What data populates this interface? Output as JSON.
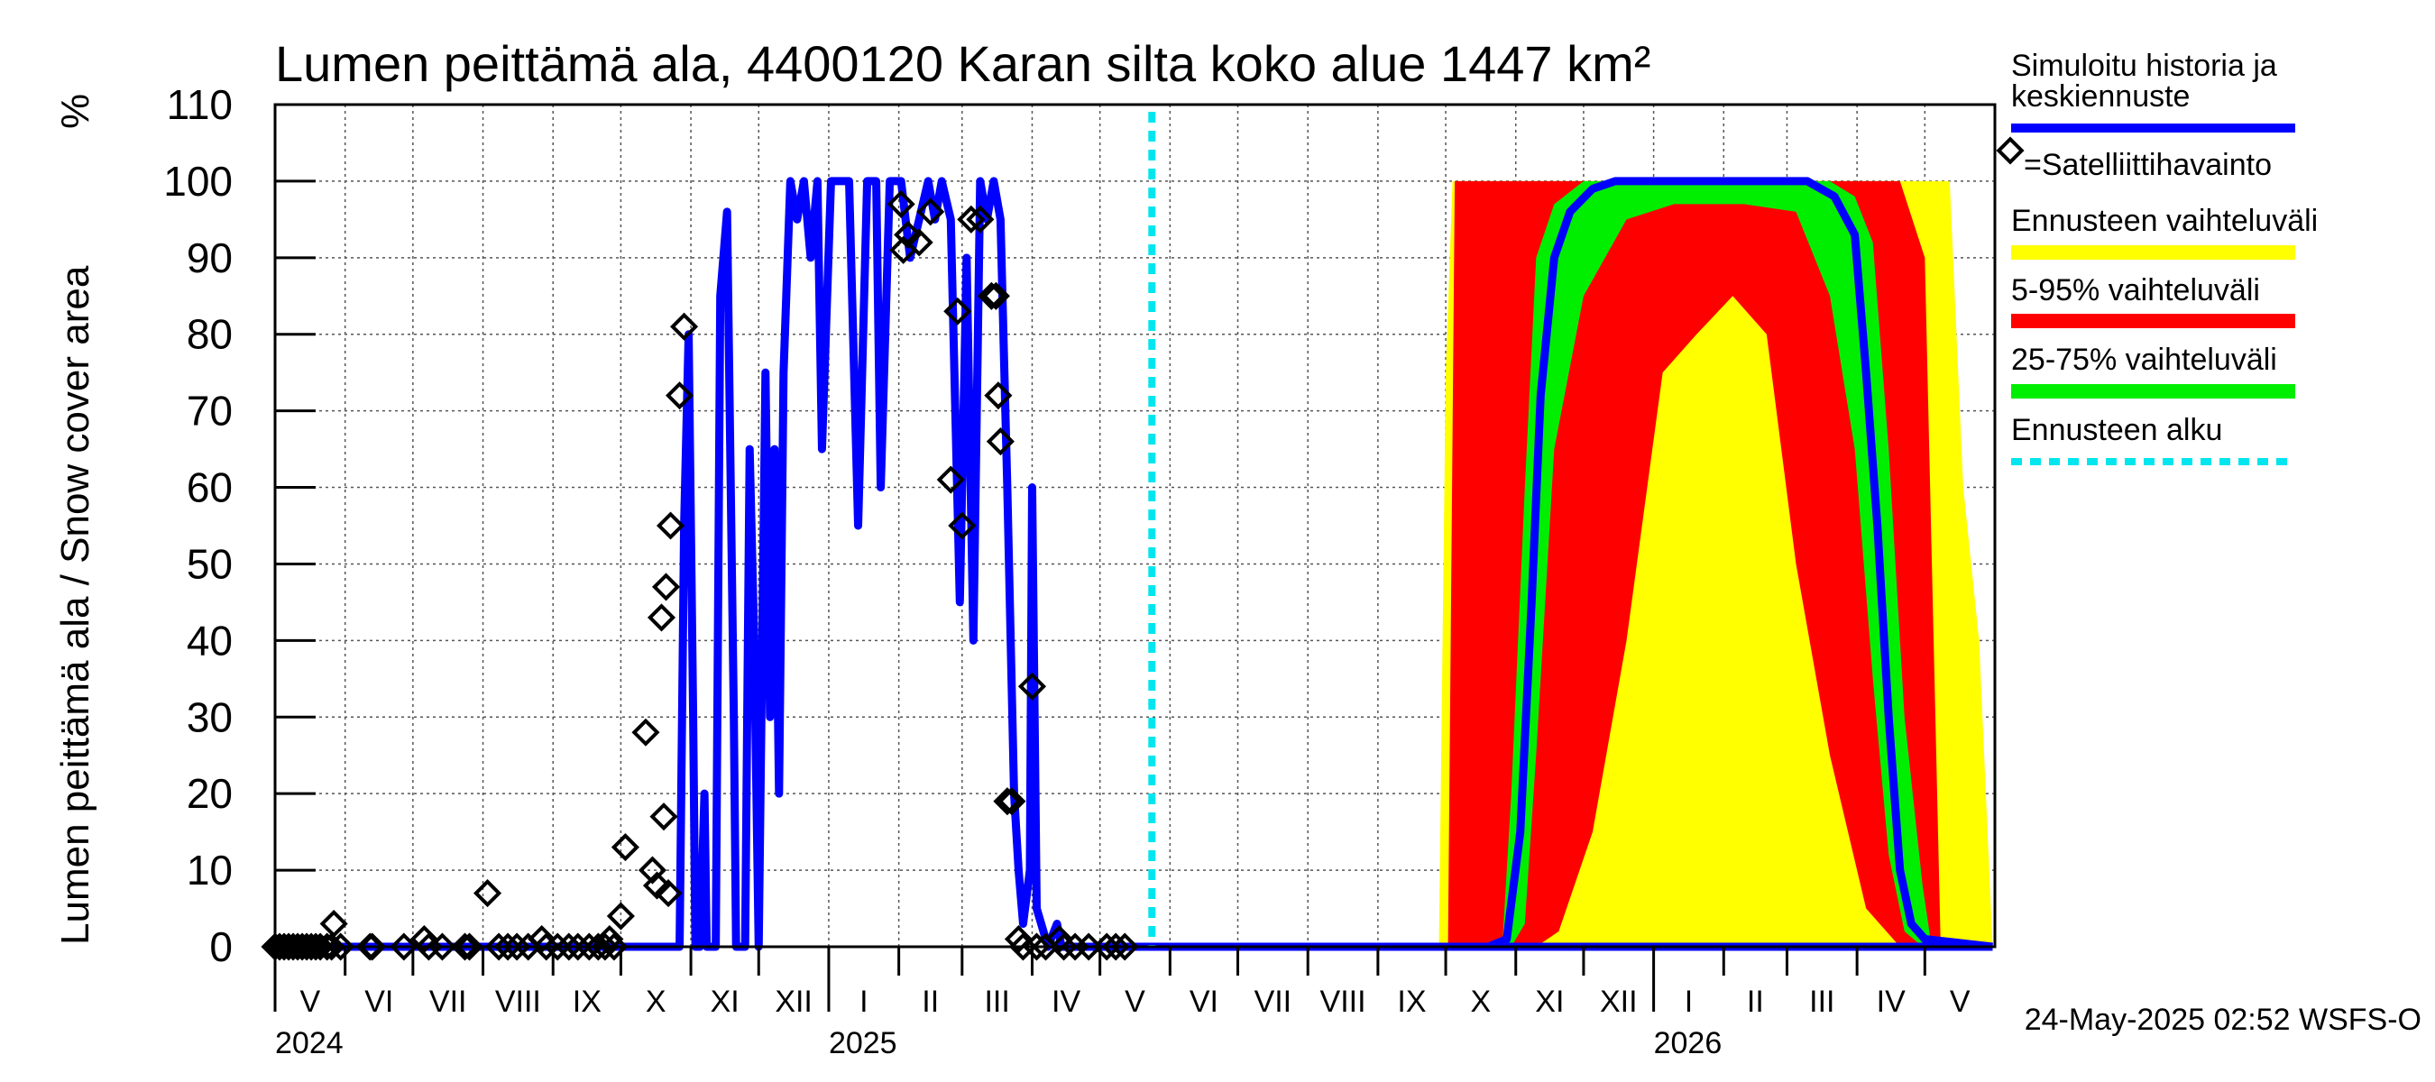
{
  "chart_data": {
    "type": "area",
    "title": "Lumen peittämä ala, 4400120 Karan silta koko alue 1447 km²",
    "ylabel": "Lumen peittämä ala / Snow cover area",
    "yunit": "%",
    "ylim": [
      0,
      110
    ],
    "yticks": [
      "0",
      "10",
      "20",
      "30",
      "40",
      "50",
      "60",
      "70",
      "80",
      "90",
      "100",
      "110"
    ],
    "xlim": [
      "2024-05-01",
      "2026-06-01"
    ],
    "grid": true,
    "months": [
      {
        "label": "V",
        "start": "2024-05-01"
      },
      {
        "label": "VI",
        "start": "2024-06-01"
      },
      {
        "label": "VII",
        "start": "2024-07-01"
      },
      {
        "label": "VIII",
        "start": "2024-08-01"
      },
      {
        "label": "IX",
        "start": "2024-09-01"
      },
      {
        "label": "X",
        "start": "2024-10-01"
      },
      {
        "label": "XI",
        "start": "2024-11-01"
      },
      {
        "label": "XII",
        "start": "2024-12-01"
      },
      {
        "label": "I",
        "start": "2025-01-01"
      },
      {
        "label": "II",
        "start": "2025-02-01"
      },
      {
        "label": "III",
        "start": "2025-03-01"
      },
      {
        "label": "IV",
        "start": "2025-04-01"
      },
      {
        "label": "V",
        "start": "2025-05-01"
      },
      {
        "label": "VI",
        "start": "2025-06-01"
      },
      {
        "label": "VII",
        "start": "2025-07-01"
      },
      {
        "label": "VIII",
        "start": "2025-08-01"
      },
      {
        "label": "IX",
        "start": "2025-09-01"
      },
      {
        "label": "X",
        "start": "2025-10-01"
      },
      {
        "label": "XI",
        "start": "2025-11-01"
      },
      {
        "label": "XII",
        "start": "2025-12-01"
      },
      {
        "label": "I",
        "start": "2026-01-01"
      },
      {
        "label": "II",
        "start": "2026-02-01"
      },
      {
        "label": "III",
        "start": "2026-03-01"
      },
      {
        "label": "IV",
        "start": "2026-04-01"
      },
      {
        "label": "V",
        "start": "2026-05-01"
      }
    ],
    "years": [
      {
        "label": "2024",
        "date": "2024-05-01"
      },
      {
        "label": "2025",
        "date": "2025-01-01"
      },
      {
        "label": "2026",
        "date": "2026-01-01"
      }
    ],
    "forecast_start": "2025-05-24",
    "simulated_history": [
      [
        "2024-05-01",
        0
      ],
      [
        "2024-10-27",
        0
      ],
      [
        "2024-10-29",
        55
      ],
      [
        "2024-10-31",
        80
      ],
      [
        "2024-11-02",
        30
      ],
      [
        "2024-11-03",
        0
      ],
      [
        "2024-11-05",
        0
      ],
      [
        "2024-11-07",
        20
      ],
      [
        "2024-11-08",
        0
      ],
      [
        "2024-11-12",
        0
      ],
      [
        "2024-11-14",
        85
      ],
      [
        "2024-11-17",
        96
      ],
      [
        "2024-11-20",
        30
      ],
      [
        "2024-11-21",
        0
      ],
      [
        "2024-11-25",
        0
      ],
      [
        "2024-11-27",
        65
      ],
      [
        "2024-11-29",
        40
      ],
      [
        "2024-12-01",
        0
      ],
      [
        "2024-12-04",
        75
      ],
      [
        "2024-12-06",
        30
      ],
      [
        "2024-12-08",
        65
      ],
      [
        "2024-12-10",
        20
      ],
      [
        "2024-12-12",
        75
      ],
      [
        "2024-12-15",
        100
      ],
      [
        "2024-12-18",
        95
      ],
      [
        "2024-12-21",
        100
      ],
      [
        "2024-12-24",
        90
      ],
      [
        "2024-12-27",
        100
      ],
      [
        "2024-12-29",
        65
      ],
      [
        "2025-01-02",
        100
      ],
      [
        "2025-01-06",
        100
      ],
      [
        "2025-01-10",
        100
      ],
      [
        "2025-01-14",
        55
      ],
      [
        "2025-01-18",
        100
      ],
      [
        "2025-01-22",
        100
      ],
      [
        "2025-01-24",
        60
      ],
      [
        "2025-01-28",
        100
      ],
      [
        "2025-02-02",
        100
      ],
      [
        "2025-02-06",
        90
      ],
      [
        "2025-02-10",
        95
      ],
      [
        "2025-02-14",
        100
      ],
      [
        "2025-02-17",
        95
      ],
      [
        "2025-02-20",
        100
      ],
      [
        "2025-02-24",
        95
      ],
      [
        "2025-02-28",
        45
      ],
      [
        "2025-03-03",
        90
      ],
      [
        "2025-03-06",
        40
      ],
      [
        "2025-03-09",
        100
      ],
      [
        "2025-03-12",
        95
      ],
      [
        "2025-03-15",
        100
      ],
      [
        "2025-03-18",
        95
      ],
      [
        "2025-03-21",
        60
      ],
      [
        "2025-03-24",
        20
      ],
      [
        "2025-03-26",
        10
      ],
      [
        "2025-03-28",
        3
      ],
      [
        "2025-03-31",
        10
      ],
      [
        "2025-04-01",
        60
      ],
      [
        "2025-04-03",
        5
      ],
      [
        "2025-04-08",
        0
      ],
      [
        "2025-04-12",
        3
      ],
      [
        "2025-04-14",
        0
      ],
      [
        "2026-05-31",
        0
      ]
    ],
    "median_forecast": [
      [
        "2025-05-24",
        0
      ],
      [
        "2025-10-20",
        0
      ],
      [
        "2025-10-28",
        1
      ],
      [
        "2025-11-03",
        15
      ],
      [
        "2025-11-08",
        45
      ],
      [
        "2025-11-12",
        72
      ],
      [
        "2025-11-18",
        90
      ],
      [
        "2025-11-25",
        96
      ],
      [
        "2025-12-05",
        99
      ],
      [
        "2025-12-15",
        100
      ],
      [
        "2026-01-15",
        100
      ],
      [
        "2026-02-15",
        100
      ],
      [
        "2026-03-10",
        100
      ],
      [
        "2026-03-22",
        98
      ],
      [
        "2026-03-31",
        93
      ],
      [
        "2026-04-05",
        75
      ],
      [
        "2026-04-10",
        55
      ],
      [
        "2026-04-15",
        30
      ],
      [
        "2026-04-20",
        10
      ],
      [
        "2026-04-25",
        3
      ],
      [
        "2026-05-01",
        1
      ],
      [
        "2026-05-31",
        0
      ]
    ],
    "band_5_95": [
      [
        "2025-10-02",
        0,
        0
      ],
      [
        "2025-10-05",
        0,
        100
      ],
      [
        "2025-10-20",
        0,
        100
      ],
      [
        "2025-11-01",
        0,
        100
      ],
      [
        "2025-11-10",
        0,
        100
      ],
      [
        "2025-11-20",
        2,
        100
      ],
      [
        "2025-12-05",
        15,
        100
      ],
      [
        "2025-12-20",
        40,
        100
      ],
      [
        "2026-01-05",
        75,
        100
      ],
      [
        "2026-01-20",
        80,
        100
      ],
      [
        "2026-02-05",
        85,
        100
      ],
      [
        "2026-02-20",
        80,
        100
      ],
      [
        "2026-03-05",
        50,
        100
      ],
      [
        "2026-03-20",
        25,
        100
      ],
      [
        "2026-04-05",
        5,
        100
      ],
      [
        "2026-04-20",
        0,
        100
      ],
      [
        "2026-05-01",
        0,
        90
      ],
      [
        "2026-05-08",
        0,
        0
      ]
    ],
    "band_25_75": [
      [
        "2025-10-26",
        0,
        0
      ],
      [
        "2025-10-30",
        0,
        20
      ],
      [
        "2025-11-05",
        3,
        60
      ],
      [
        "2025-11-10",
        25,
        90
      ],
      [
        "2025-11-18",
        65,
        97
      ],
      [
        "2025-12-01",
        85,
        100
      ],
      [
        "2025-12-20",
        95,
        100
      ],
      [
        "2026-01-10",
        97,
        100
      ],
      [
        "2026-02-10",
        97,
        100
      ],
      [
        "2026-03-05",
        96,
        100
      ],
      [
        "2026-03-20",
        85,
        100
      ],
      [
        "2026-03-31",
        65,
        98
      ],
      [
        "2026-04-08",
        35,
        92
      ],
      [
        "2026-04-15",
        12,
        65
      ],
      [
        "2026-04-22",
        2,
        30
      ],
      [
        "2026-04-30",
        0,
        8
      ],
      [
        "2026-05-04",
        0,
        0
      ]
    ],
    "band_total": [
      [
        "2025-09-28",
        0,
        0
      ],
      [
        "2025-10-01",
        0,
        75
      ],
      [
        "2025-10-04",
        0,
        100
      ],
      [
        "2026-05-05",
        0,
        100
      ],
      [
        "2026-05-12",
        0,
        100
      ],
      [
        "2026-05-18",
        0,
        60
      ],
      [
        "2026-05-25",
        0,
        40
      ],
      [
        "2026-05-31",
        0,
        0
      ]
    ],
    "satellite_observations": [
      [
        "2024-05-01",
        0
      ],
      [
        "2024-05-03",
        0
      ],
      [
        "2024-05-05",
        0
      ],
      [
        "2024-05-07",
        0
      ],
      [
        "2024-05-09",
        0
      ],
      [
        "2024-05-11",
        0
      ],
      [
        "2024-05-13",
        0
      ],
      [
        "2024-05-15",
        0
      ],
      [
        "2024-05-17",
        0
      ],
      [
        "2024-05-19",
        0
      ],
      [
        "2024-05-21",
        0
      ],
      [
        "2024-05-24",
        0
      ],
      [
        "2024-05-26",
        0
      ],
      [
        "2024-05-27",
        3
      ],
      [
        "2024-05-30",
        0
      ],
      [
        "2024-06-12",
        0
      ],
      [
        "2024-06-13",
        0
      ],
      [
        "2024-06-27",
        0
      ],
      [
        "2024-07-06",
        1
      ],
      [
        "2024-07-08",
        0
      ],
      [
        "2024-07-14",
        0
      ],
      [
        "2024-07-24",
        0
      ],
      [
        "2024-07-26",
        0
      ],
      [
        "2024-08-03",
        7
      ],
      [
        "2024-08-08",
        0
      ],
      [
        "2024-08-12",
        0
      ],
      [
        "2024-08-16",
        0
      ],
      [
        "2024-08-21",
        0
      ],
      [
        "2024-08-27",
        1
      ],
      [
        "2024-08-29",
        0
      ],
      [
        "2024-09-03",
        0
      ],
      [
        "2024-09-08",
        0
      ],
      [
        "2024-09-12",
        0
      ],
      [
        "2024-09-17",
        0
      ],
      [
        "2024-09-21",
        0
      ],
      [
        "2024-09-24",
        0
      ],
      [
        "2024-09-26",
        1
      ],
      [
        "2024-09-28",
        0
      ],
      [
        "2024-10-01",
        4
      ],
      [
        "2024-10-03",
        13
      ],
      [
        "2024-10-12",
        28
      ],
      [
        "2024-10-15",
        10
      ],
      [
        "2024-10-17",
        8
      ],
      [
        "2024-10-19",
        43
      ],
      [
        "2024-10-20",
        17
      ],
      [
        "2024-10-21",
        47
      ],
      [
        "2024-10-22",
        7
      ],
      [
        "2024-10-23",
        55
      ],
      [
        "2024-10-27",
        72
      ],
      [
        "2024-10-29",
        81
      ],
      [
        "2025-02-02",
        97
      ],
      [
        "2025-02-03",
        91
      ],
      [
        "2025-02-05",
        93
      ],
      [
        "2025-02-10",
        92
      ],
      [
        "2025-02-15",
        96
      ],
      [
        "2025-02-24",
        61
      ],
      [
        "2025-02-27",
        83
      ],
      [
        "2025-03-01",
        55
      ],
      [
        "2025-03-05",
        95
      ],
      [
        "2025-03-09",
        95
      ],
      [
        "2025-03-14",
        85
      ],
      [
        "2025-03-16",
        85
      ],
      [
        "2025-03-17",
        72
      ],
      [
        "2025-03-18",
        66
      ],
      [
        "2025-03-21",
        19
      ],
      [
        "2025-03-23",
        19
      ],
      [
        "2025-03-26",
        1
      ],
      [
        "2025-03-28",
        0
      ],
      [
        "2025-04-01",
        34
      ],
      [
        "2025-04-03",
        0
      ],
      [
        "2025-04-07",
        0
      ],
      [
        "2025-04-13",
        1
      ],
      [
        "2025-04-15",
        0
      ],
      [
        "2025-04-20",
        0
      ],
      [
        "2025-04-26",
        0
      ],
      [
        "2025-05-04",
        0
      ],
      [
        "2025-05-08",
        0
      ],
      [
        "2025-05-12",
        0
      ]
    ],
    "legend": {
      "position": "right",
      "items": [
        {
          "key": "history",
          "label_lines": [
            "Simuloitu historia ja",
            "keskiennuste"
          ],
          "color": "#0000ff"
        },
        {
          "key": "satellite",
          "label": "=Satelliittihavainto",
          "color": "#000000"
        },
        {
          "key": "total",
          "label": "Ennusteen vaihteluväli",
          "color": "#ffff00"
        },
        {
          "key": "band5",
          "label": "5-95% vaihteluväli",
          "color": "#ff0000"
        },
        {
          "key": "band25",
          "label": "25-75% vaihteluväli",
          "color": "#00ee00"
        },
        {
          "key": "forecast",
          "label": "Ennusteen alku",
          "color": "#00e5ee"
        }
      ]
    },
    "footer": "24-May-2025 02:52 WSFS-O"
  }
}
